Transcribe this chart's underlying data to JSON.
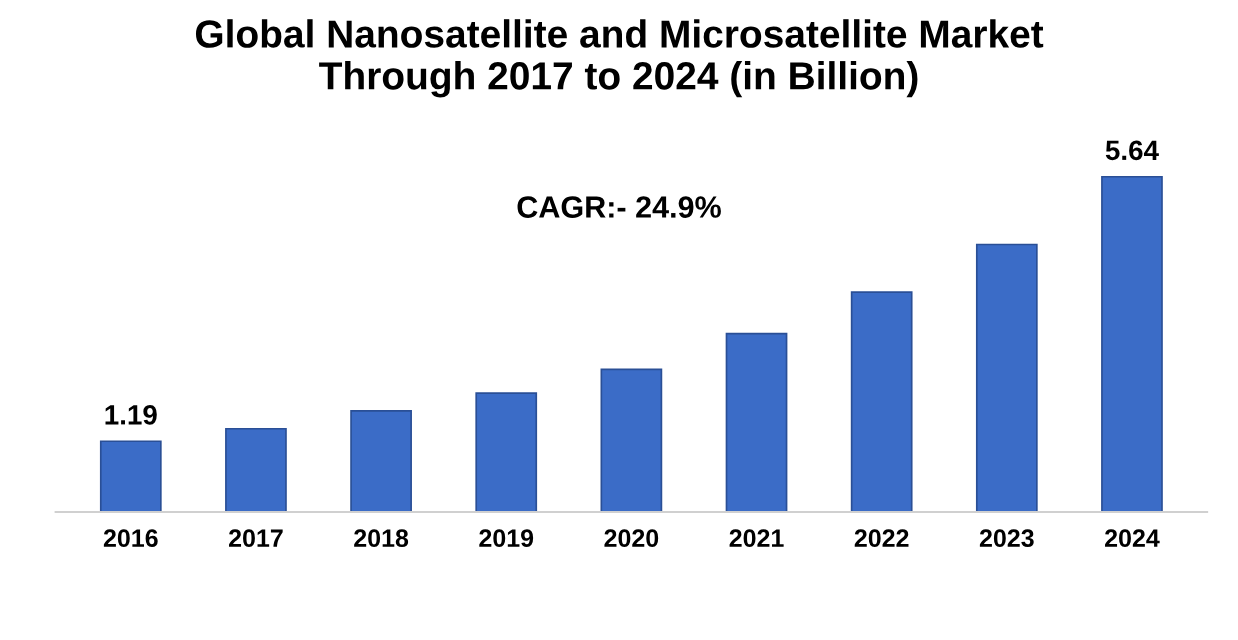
{
  "chart_data": {
    "type": "bar",
    "title": "Global Nanosatellite and Microsatellite Market\nThrough 2017 to 2024 (in Billion)",
    "categories": [
      "2016",
      "2017",
      "2018",
      "2019",
      "2020",
      "2021",
      "2022",
      "2023",
      "2024"
    ],
    "values": [
      1.19,
      1.4,
      1.7,
      2.0,
      2.4,
      3.0,
      3.7,
      4.5,
      5.64
    ],
    "value_labels": [
      "1.19",
      null,
      null,
      null,
      null,
      null,
      null,
      null,
      "5.64"
    ],
    "color": "#3b6cc7",
    "annotations": [
      "CAGR:- 24.9%"
    ],
    "grid": false,
    "legend": false
  }
}
